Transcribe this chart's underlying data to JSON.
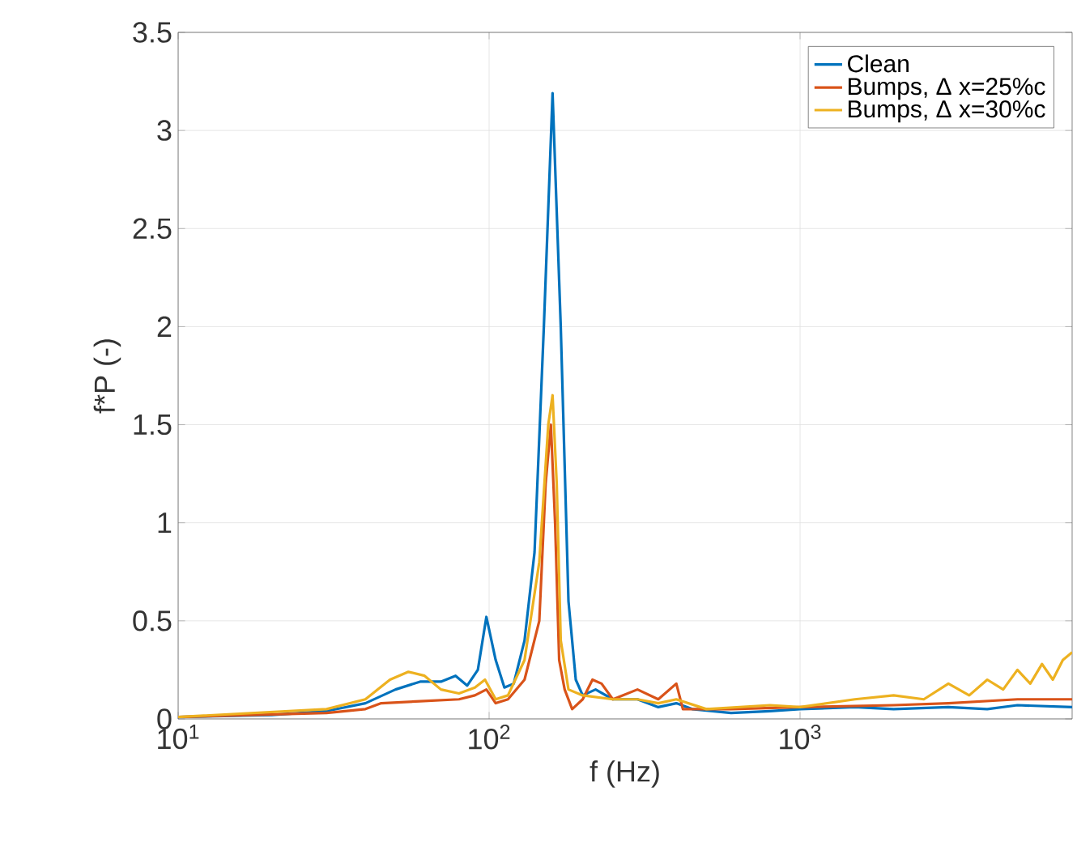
{
  "chart_data": {
    "type": "line",
    "xlabel": "f (Hz)",
    "ylabel": "f*P (-)",
    "log": "x",
    "xlim": [
      10,
      7500
    ],
    "ylim": [
      0,
      3.5
    ],
    "xticks": [
      {
        "value": 10,
        "label": "10$^{1}$"
      },
      {
        "value": 100,
        "label": "10$^{2}$"
      },
      {
        "value": 1000,
        "label": "10$^{3}$"
      }
    ],
    "yticks": [
      0,
      0.5,
      1,
      1.5,
      2,
      2.5,
      3,
      3.5
    ],
    "grid": true,
    "legend": "top right",
    "series": [
      {
        "name": "Clean",
        "color": "#0072bd",
        "x": [
          10,
          20,
          30,
          40,
          50,
          60,
          70,
          78,
          85,
          92,
          98,
          105,
          112,
          120,
          130,
          140,
          150,
          160,
          170,
          180,
          190,
          200,
          220,
          250,
          300,
          350,
          400,
          450,
          600,
          800,
          1000,
          1500,
          2000,
          3000,
          4000,
          5000,
          7500
        ],
        "values": [
          0.01,
          0.02,
          0.04,
          0.08,
          0.15,
          0.19,
          0.19,
          0.22,
          0.17,
          0.25,
          0.52,
          0.3,
          0.16,
          0.18,
          0.4,
          0.85,
          2.0,
          3.19,
          2.0,
          0.6,
          0.2,
          0.12,
          0.15,
          0.1,
          0.1,
          0.06,
          0.08,
          0.05,
          0.03,
          0.04,
          0.05,
          0.06,
          0.05,
          0.06,
          0.05,
          0.07,
          0.06
        ]
      },
      {
        "name": "Bumps, Δ x=25%c",
        "color": "#d95319",
        "x": [
          10,
          30,
          40,
          45,
          60,
          80,
          90,
          98,
          105,
          115,
          130,
          145,
          152,
          158,
          163,
          168,
          175,
          185,
          200,
          215,
          230,
          250,
          300,
          350,
          400,
          420,
          600,
          1000,
          2000,
          3000,
          5000,
          7500
        ],
        "values": [
          0.01,
          0.03,
          0.05,
          0.08,
          0.09,
          0.1,
          0.12,
          0.15,
          0.08,
          0.1,
          0.2,
          0.5,
          1.2,
          1.5,
          1.0,
          0.3,
          0.15,
          0.05,
          0.1,
          0.2,
          0.18,
          0.1,
          0.15,
          0.1,
          0.18,
          0.05,
          0.05,
          0.06,
          0.07,
          0.08,
          0.1,
          0.1
        ]
      },
      {
        "name": "Bumps, Δ x=30%c",
        "color": "#edb120",
        "x": [
          10,
          30,
          40,
          48,
          55,
          62,
          70,
          80,
          90,
          97,
          105,
          115,
          130,
          145,
          155,
          160,
          165,
          170,
          180,
          200,
          250,
          300,
          350,
          400,
          500,
          800,
          1000,
          1500,
          2000,
          2500,
          3000,
          3500,
          4000,
          4500,
          5000,
          5500,
          6000,
          6500,
          7000,
          7500
        ],
        "values": [
          0.01,
          0.05,
          0.1,
          0.2,
          0.24,
          0.22,
          0.15,
          0.13,
          0.16,
          0.2,
          0.1,
          0.12,
          0.3,
          0.8,
          1.5,
          1.65,
          1.2,
          0.4,
          0.15,
          0.12,
          0.1,
          0.1,
          0.08,
          0.1,
          0.05,
          0.07,
          0.06,
          0.1,
          0.12,
          0.1,
          0.18,
          0.12,
          0.2,
          0.15,
          0.25,
          0.18,
          0.28,
          0.2,
          0.3,
          0.34
        ]
      }
    ]
  }
}
